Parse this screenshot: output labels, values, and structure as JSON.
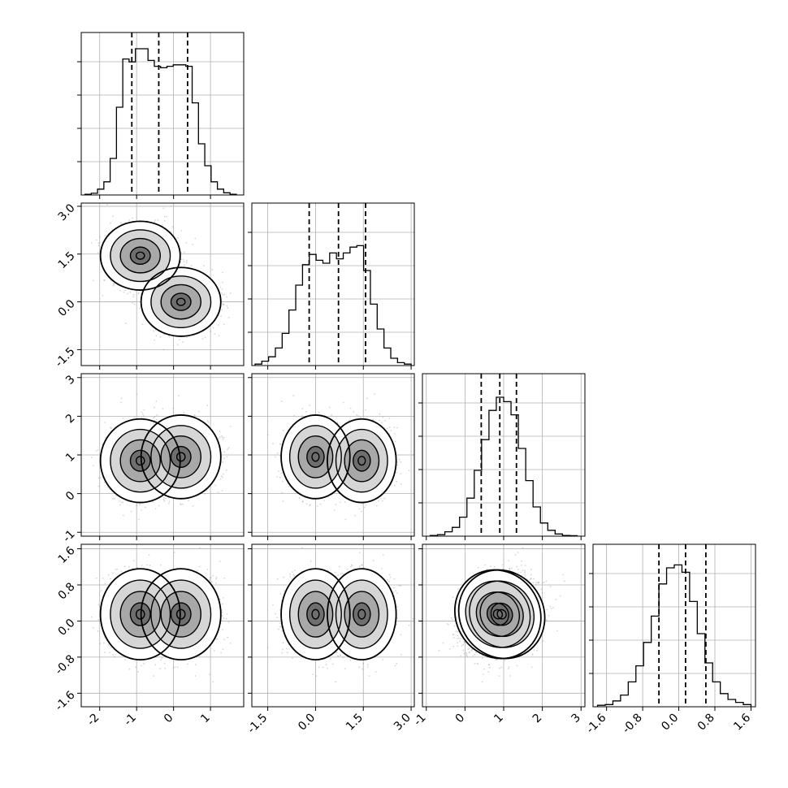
{
  "chart_data": {
    "type": "corner",
    "variables": 4,
    "colors": {
      "line": "#000000",
      "grid": "#b0b0b0",
      "points": "#888888",
      "dashed": "#000000"
    },
    "grid": true,
    "ranges": [
      [
        -2.5,
        1.9
      ],
      [
        -2.0,
        3.1
      ],
      [
        -1.1,
        3.1
      ],
      [
        -1.9,
        1.7
      ]
    ],
    "tick_labels": [
      [
        "-2",
        "-1",
        "0",
        "1"
      ],
      [
        "-1.5",
        "0.0",
        "1.5",
        "3.0"
      ],
      [
        "-1",
        "0",
        "1",
        "2",
        "3"
      ],
      [
        "-1.6",
        "-0.8",
        "0.0",
        "0.8",
        "1.6"
      ]
    ],
    "tick_values": [
      [
        -2,
        -1,
        0,
        1
      ],
      [
        -1.5,
        0.0,
        1.5,
        3.0
      ],
      [
        -1,
        0,
        1,
        2,
        3
      ],
      [
        -1.6,
        -0.8,
        0.0,
        0.8,
        1.6
      ]
    ],
    "quantiles": [
      [
        -1.13,
        -0.4,
        0.38
      ],
      [
        -0.2,
        0.72,
        1.57
      ],
      [
        0.42,
        0.9,
        1.33
      ],
      [
        -0.44,
        0.15,
        0.6
      ]
    ],
    "histograms": [
      {
        "edges": [
          -2.4,
          1.7
        ],
        "counts": [
          0.005,
          0.012,
          0.04,
          0.09,
          0.25,
          0.6,
          0.93,
          0.91,
          1.0,
          1.0,
          0.92,
          0.88,
          0.87,
          0.88,
          0.89,
          0.89,
          0.88,
          0.63,
          0.35,
          0.2,
          0.09,
          0.04,
          0.015,
          0.005
        ]
      },
      {
        "edges": [
          -1.9,
          3.0
        ],
        "counts": [
          0.01,
          0.03,
          0.06,
          0.12,
          0.22,
          0.38,
          0.55,
          0.69,
          0.76,
          0.72,
          0.7,
          0.77,
          0.73,
          0.77,
          0.81,
          0.82,
          0.65,
          0.42,
          0.25,
          0.12,
          0.05,
          0.02,
          0.01
        ]
      },
      {
        "edges": [
          -0.9,
          2.9
        ],
        "counts": [
          0.005,
          0.01,
          0.03,
          0.06,
          0.13,
          0.26,
          0.45,
          0.66,
          0.86,
          0.95,
          0.92,
          0.83,
          0.6,
          0.38,
          0.2,
          0.09,
          0.04,
          0.015,
          0.005,
          0.003
        ]
      },
      {
        "edges": [
          -1.8,
          1.6
        ],
        "counts": [
          0.01,
          0.015,
          0.04,
          0.08,
          0.17,
          0.28,
          0.44,
          0.62,
          0.84,
          0.95,
          0.97,
          0.92,
          0.72,
          0.5,
          0.3,
          0.17,
          0.09,
          0.05,
          0.03,
          0.015
        ]
      }
    ],
    "mixture": {
      "weights": [
        0.5,
        0.5
      ],
      "means": [
        [
          -0.9,
          1.45,
          0.85,
          0.15
        ],
        [
          0.2,
          0.0,
          0.95,
          0.15
        ]
      ],
      "sigmas": [
        [
          0.45,
          0.45,
          0.45,
          0.42
        ],
        [
          0.45,
          0.45,
          0.45,
          0.42
        ]
      ],
      "corr_pairs": {
        "2-3": 0.25
      }
    }
  }
}
